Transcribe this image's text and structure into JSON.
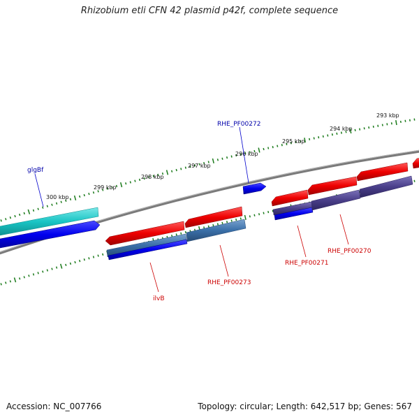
{
  "title": "Rhizobium etli CFN 42 plasmid p42f, complete sequence",
  "footer": {
    "accession": "Accession: NC_007766",
    "stats": "Topology: circular; Length: 642,517 bp; Genes: 567"
  },
  "scale_labels": [
    "293 kbp",
    "294 kbp",
    "295 kbp",
    "296 kbp",
    "297 kbp",
    "298 kbp",
    "299 kbp",
    "300 kbp"
  ],
  "gene_labels": {
    "glgBf": "glgBf",
    "rhe272": "RHE_PF00272",
    "ilvB": "ilvB",
    "rhe273": "RHE_PF00273",
    "rhe271": "RHE_PF00271",
    "rhe270": "RHE_PF00270"
  },
  "colors": {
    "forward_cds": "#0000ee",
    "forward_feature": "#19c4c4",
    "reverse_cds": "#ee0000",
    "reverse_feature_a": "#3a6fa8",
    "reverse_feature_b": "#4a3f8a",
    "backbone": "#777777",
    "scale": "#1a7a1a",
    "forward_label": "#0000aa",
    "reverse_label": "#cc0000"
  }
}
